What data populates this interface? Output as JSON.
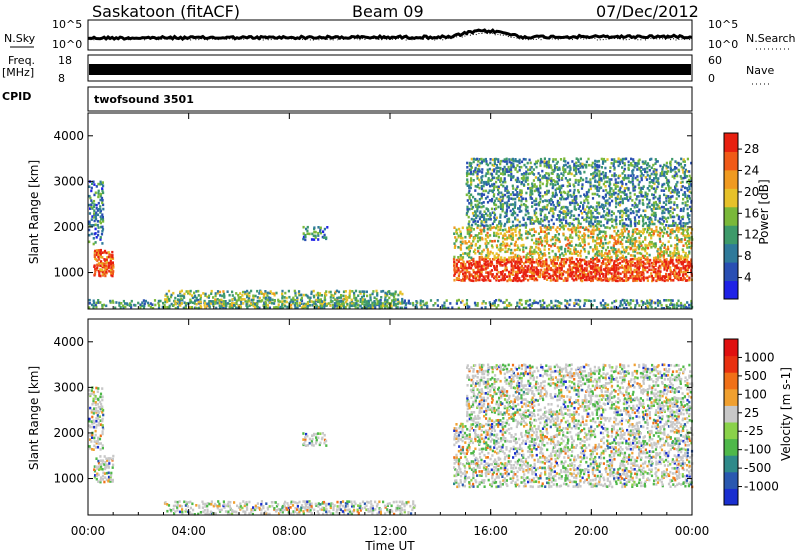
{
  "header": {
    "station": "Saskatoon (fitACF)",
    "beam": "Beam 09",
    "date": "07/Dec/2012"
  },
  "strip": {
    "nsky_label": "N.Sky",
    "nsky_ticks": [
      "10^5",
      "10^0"
    ],
    "nsearch_label": "N.Search",
    "nsearch_ticks": [
      "10^5",
      "10^0"
    ],
    "freq_label_1": "Freq.",
    "freq_label_2": "[MHz]",
    "freq_ticks": [
      "18",
      "8"
    ],
    "nave_label": "Nave",
    "nave_ticks": [
      "60",
      "0"
    ],
    "cpid_label": "CPID",
    "cpid_value": "twofsound 3501"
  },
  "chart_data": [
    {
      "type": "heatmap",
      "name": "power",
      "ylabel": "Slant Range [km]",
      "ylim": [
        200,
        4500
      ],
      "yticks": [
        "1000",
        "2000",
        "3000",
        "4000"
      ],
      "xlabel": "Time UT",
      "xticks": [
        "00:00",
        "04:00",
        "08:00",
        "12:00",
        "16:00",
        "20:00",
        "00:00"
      ],
      "colorbar": {
        "label": "Power [dB]",
        "ticks": [
          "4",
          "8",
          "12",
          "16",
          "20",
          "24",
          "28"
        ],
        "range": [
          0,
          31
        ],
        "colors": [
          "#1f22e6",
          "#2a4fb3",
          "#2f7a9a",
          "#3e9a6a",
          "#7ab83a",
          "#e6c12a",
          "#f09a20",
          "#f05a18",
          "#e82010"
        ]
      },
      "regions": [
        {
          "t0": 0.2,
          "t1": 1.0,
          "r0": 900,
          "r1": 1500,
          "level": 0.85
        },
        {
          "t0": 0.0,
          "t1": 0.6,
          "r0": 1600,
          "r1": 3000,
          "level": 0.3
        },
        {
          "t0": 8.5,
          "t1": 9.5,
          "r0": 1700,
          "r1": 2000,
          "level": 0.3
        },
        {
          "t0": 0.0,
          "t1": 24.0,
          "r0": 200,
          "r1": 400,
          "level": 0.35
        },
        {
          "t0": 3.0,
          "t1": 12.5,
          "r0": 200,
          "r1": 600,
          "level": 0.45
        },
        {
          "t0": 14.5,
          "t1": 24.0,
          "r0": 800,
          "r1": 1300,
          "level": 0.9
        },
        {
          "t0": 14.5,
          "t1": 24.0,
          "r0": 1300,
          "r1": 2000,
          "level": 0.6
        },
        {
          "t0": 15.0,
          "t1": 24.0,
          "r0": 2000,
          "r1": 3500,
          "level": 0.35
        }
      ]
    },
    {
      "type": "heatmap",
      "name": "velocity",
      "ylabel": "Slant Range [km]",
      "ylim": [
        200,
        4500
      ],
      "yticks": [
        "1000",
        "2000",
        "3000",
        "4000"
      ],
      "xlabel": "Time UT",
      "xticks": [
        "00:00",
        "04:00",
        "08:00",
        "12:00",
        "16:00",
        "20:00",
        "00:00"
      ],
      "colorbar": {
        "label": "Velocity [m s-1]",
        "ticks": [
          "1000",
          "500",
          "100",
          "25",
          "-25",
          "-100",
          "-500",
          "-1000"
        ],
        "range": [
          -1200,
          1200
        ],
        "colors": [
          "#1a2fd0",
          "#2a58b0",
          "#2f8a8a",
          "#4fb84a",
          "#8ad24a",
          "#c8c8c8",
          "#f0a030",
          "#f07018",
          "#e83010",
          "#e01010"
        ]
      },
      "regions": [
        {
          "t0": 0.2,
          "t1": 1.0,
          "r0": 900,
          "r1": 1500,
          "level": 0.5
        },
        {
          "t0": 0.0,
          "t1": 0.6,
          "r0": 1600,
          "r1": 3000,
          "level": 0.35
        },
        {
          "t0": 8.5,
          "t1": 9.5,
          "r0": 1700,
          "r1": 2000,
          "level": 0.3
        },
        {
          "t0": 3.0,
          "t1": 13.0,
          "r0": 200,
          "r1": 500,
          "level": 0.4
        },
        {
          "t0": 14.5,
          "t1": 24.0,
          "r0": 800,
          "r1": 2200,
          "level": 0.5
        },
        {
          "t0": 15.0,
          "t1": 24.0,
          "r0": 2200,
          "r1": 3500,
          "level": 0.3
        }
      ]
    }
  ]
}
